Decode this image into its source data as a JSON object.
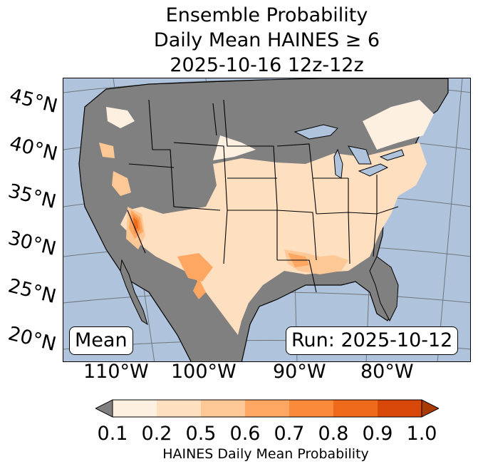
{
  "title": {
    "line1": "Ensemble Probability",
    "line2": "Daily Mean HAINES ≥ 6",
    "line3": "2025-10-16 12z-12z"
  },
  "map": {
    "ocean_color": "#afc4dc",
    "land_no_data_color": "#808080",
    "boundary_color": "#000000",
    "latitude_labels": [
      "45°N",
      "40°N",
      "35°N",
      "30°N",
      "25°N",
      "20°N"
    ],
    "longitude_labels": [
      "110°W",
      "100°W",
      "90°W",
      "80°W"
    ]
  },
  "annotations": {
    "stat": "Mean",
    "run": "Run: 2025-10-12"
  },
  "colorbar": {
    "tick_labels": [
      "0.1",
      "0.2",
      "0.5",
      "0.6",
      "0.7",
      "0.8",
      "0.9",
      "1.0"
    ],
    "colors": [
      "#fef0e1",
      "#fedfc0",
      "#fdc895",
      "#fda762",
      "#fc8a3b",
      "#ef6a1b",
      "#d84808"
    ],
    "under_color": "#808080",
    "over_color": "#a93a03",
    "title": "HAINES Daily Mean Probability"
  }
}
